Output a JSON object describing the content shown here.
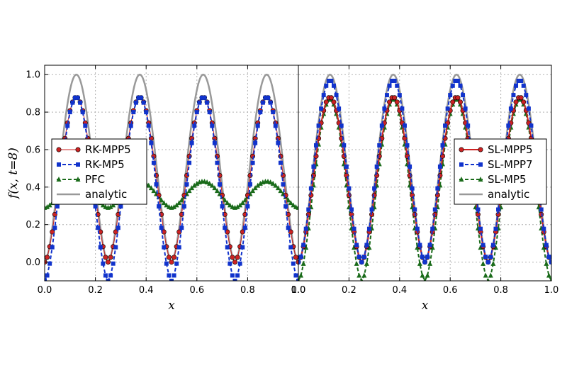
{
  "chart_data": [
    {
      "type": "line",
      "panel": "left",
      "xlabel": "x",
      "ylabel": "f(x, t=8)",
      "xlim": [
        0.0,
        1.0
      ],
      "ylim": [
        -0.1,
        1.05
      ],
      "xticks": [
        "0.0",
        "0.2",
        "0.4",
        "0.6",
        "0.8",
        "1.0"
      ],
      "yticks": [
        "0.0",
        "0.2",
        "0.4",
        "0.6",
        "0.8",
        "1.0"
      ],
      "grid": true,
      "legend_position": "center-left",
      "series": [
        {
          "name": "RK-MPP5",
          "color": "#cc2222",
          "marker": "circle",
          "style": "solid-thin",
          "peak": 0.88,
          "trough": 0.0
        },
        {
          "name": "RK-MP5",
          "color": "#1133cc",
          "marker": "square",
          "style": "dashed",
          "peak": 0.88,
          "trough": -0.1
        },
        {
          "name": "PFC",
          "color": "#1a6b1a",
          "marker": "triangle",
          "style": "dashed",
          "peak": 0.43,
          "trough": 0.29
        },
        {
          "name": "analytic",
          "color": "#999999",
          "marker": "none",
          "style": "solid",
          "peak": 1.0,
          "trough": 0.0
        }
      ]
    },
    {
      "type": "line",
      "panel": "right",
      "xlabel": "x",
      "ylabel": "",
      "xlim": [
        0.0,
        1.0
      ],
      "ylim": [
        -0.1,
        1.05
      ],
      "xticks": [
        "0.0",
        "0.2",
        "0.4",
        "0.6",
        "0.8",
        "1.0"
      ],
      "grid": true,
      "legend_position": "center-right",
      "series": [
        {
          "name": "SL-MPP5",
          "color": "#cc2222",
          "marker": "circle",
          "style": "solid",
          "peak": 0.88,
          "trough": 0.0
        },
        {
          "name": "SL-MPP7",
          "color": "#1133cc",
          "marker": "square",
          "style": "dashed",
          "peak": 0.97,
          "trough": 0.0
        },
        {
          "name": "SL-MP5",
          "color": "#1a6b1a",
          "marker": "triangle",
          "style": "dashed",
          "peak": 0.87,
          "trough": -0.1
        },
        {
          "name": "analytic",
          "color": "#999999",
          "marker": "none",
          "style": "solid",
          "peak": 1.0,
          "trough": 0.0
        }
      ]
    }
  ]
}
